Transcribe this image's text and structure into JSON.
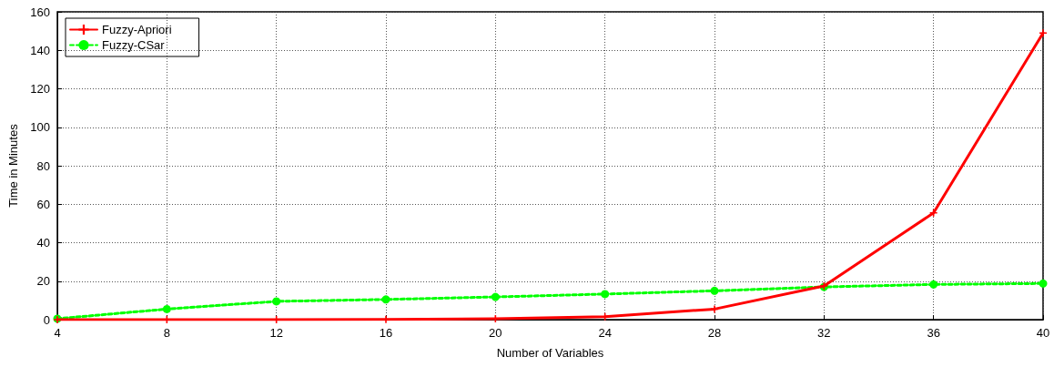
{
  "chart_data": {
    "type": "line",
    "xlabel": "Number of Variables",
    "ylabel": "Time in Minutes",
    "x": [
      4,
      8,
      12,
      16,
      20,
      24,
      28,
      32,
      36,
      40
    ],
    "xlim": [
      4,
      40
    ],
    "xticks": [
      4,
      8,
      12,
      16,
      20,
      24,
      28,
      32,
      36,
      40
    ],
    "ylim": [
      0,
      160
    ],
    "yticks": [
      0,
      20,
      40,
      60,
      80,
      100,
      120,
      140,
      160
    ],
    "grid": true,
    "legend": "top left",
    "series": [
      {
        "name": "Fuzzy-Apriori",
        "color": "#ff0000",
        "marker": "cross",
        "line_style": "solid",
        "values": [
          0,
          0,
          0,
          0.1,
          0.5,
          1.5,
          5.5,
          17.5,
          55.5,
          149
        ]
      },
      {
        "name": "Fuzzy-CSar",
        "color": "#00ff00",
        "marker": "circle",
        "line_style": "dashed",
        "values": [
          0.5,
          5.5,
          9.5,
          10.5,
          11.8,
          13.3,
          15,
          17,
          18.3,
          18.8
        ]
      }
    ]
  }
}
